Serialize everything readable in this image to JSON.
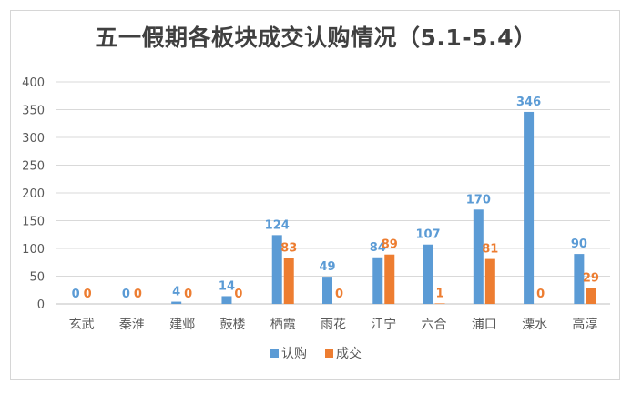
{
  "chart_data": {
    "type": "bar",
    "title": "五一假期各板块成交认购情况（5.1-5.4）",
    "categories": [
      "玄武",
      "秦淮",
      "建邺",
      "鼓楼",
      "栖霞",
      "雨花",
      "江宁",
      "六合",
      "浦口",
      "溧水",
      "高淳"
    ],
    "series": [
      {
        "name": "认购",
        "color": "#5b9bd5",
        "values": [
          0,
          0,
          4,
          14,
          124,
          49,
          84,
          107,
          170,
          346,
          90
        ]
      },
      {
        "name": "成交",
        "color": "#ed7d31",
        "values": [
          0,
          0,
          0,
          0,
          83,
          0,
          89,
          1,
          81,
          0,
          29
        ]
      }
    ],
    "ylim": [
      0,
      400
    ],
    "yticks": [
      0,
      50,
      100,
      150,
      200,
      250,
      300,
      350,
      400
    ],
    "grid": true,
    "legend_position": "bottom",
    "xlabel": "",
    "ylabel": ""
  }
}
